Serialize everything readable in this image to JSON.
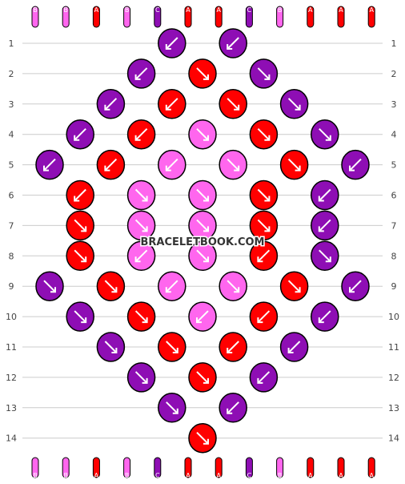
{
  "watermark": "BRACELETBOOK.COM",
  "colors": {
    "A": "#ff0000",
    "B": "#ff66ee",
    "C": "#8e0eb4",
    "grid": "#cccccc",
    "rowNumber": "#444444",
    "arrow": "#ffffff"
  },
  "strings_top": [
    "B",
    "B",
    "A",
    "B",
    "C",
    "A",
    "A",
    "C",
    "B",
    "A",
    "A",
    "A"
  ],
  "strings_bottom": [
    "B",
    "B",
    "A",
    "B",
    "C",
    "A",
    "A",
    "C",
    "B",
    "A",
    "A",
    "A"
  ],
  "row_numbers": [
    "1",
    "2",
    "3",
    "4",
    "5",
    "6",
    "7",
    "8",
    "9",
    "10",
    "11",
    "12",
    "13",
    "14"
  ],
  "knot_rows": [
    {
      "row": "1",
      "knots": [
        {
          "color": "C",
          "dir": "ldown"
        },
        {
          "color": "C",
          "dir": "ldown"
        }
      ]
    },
    {
      "row": "2",
      "knots": [
        {
          "color": "C",
          "dir": "ldown"
        },
        {
          "color": "A",
          "dir": "rdown"
        },
        {
          "color": "C",
          "dir": "rdown"
        }
      ]
    },
    {
      "row": "3",
      "knots": [
        {
          "color": "C",
          "dir": "ldown"
        },
        {
          "color": "A",
          "dir": "ldown"
        },
        {
          "color": "A",
          "dir": "rdown"
        },
        {
          "color": "C",
          "dir": "rdown"
        }
      ]
    },
    {
      "row": "4",
      "knots": [
        {
          "color": "C",
          "dir": "ldown"
        },
        {
          "color": "A",
          "dir": "ldown"
        },
        {
          "color": "B",
          "dir": "rdown"
        },
        {
          "color": "A",
          "dir": "rdown"
        },
        {
          "color": "C",
          "dir": "rdown"
        }
      ]
    },
    {
      "row": "5",
      "knots": [
        {
          "color": "C",
          "dir": "ldown"
        },
        {
          "color": "A",
          "dir": "ldown"
        },
        {
          "color": "B",
          "dir": "ldown"
        },
        {
          "color": "B",
          "dir": "rdown"
        },
        {
          "color": "A",
          "dir": "rdown"
        },
        {
          "color": "C",
          "dir": "ldown"
        }
      ]
    },
    {
      "row": "6",
      "knots": [
        {
          "color": "A",
          "dir": "ldown"
        },
        {
          "color": "B",
          "dir": "rdown"
        },
        {
          "color": "B",
          "dir": "rdown"
        },
        {
          "color": "A",
          "dir": "rdown"
        },
        {
          "color": "C",
          "dir": "ldown"
        }
      ]
    },
    {
      "row": "7",
      "knots": [
        {
          "color": "A",
          "dir": "rdown"
        },
        {
          "color": "B",
          "dir": "rdown"
        },
        {
          "color": "B",
          "dir": "rdown"
        },
        {
          "color": "A",
          "dir": "rdown"
        },
        {
          "color": "C",
          "dir": "ldown"
        }
      ]
    },
    {
      "row": "8",
      "knots": [
        {
          "color": "A",
          "dir": "rdown"
        },
        {
          "color": "B",
          "dir": "ldown"
        },
        {
          "color": "B",
          "dir": "rdown"
        },
        {
          "color": "A",
          "dir": "ldown"
        },
        {
          "color": "C",
          "dir": "rdown"
        }
      ]
    },
    {
      "row": "9",
      "knots": [
        {
          "color": "C",
          "dir": "rdown"
        },
        {
          "color": "A",
          "dir": "rdown"
        },
        {
          "color": "B",
          "dir": "ldown"
        },
        {
          "color": "B",
          "dir": "rdown"
        },
        {
          "color": "A",
          "dir": "rdown"
        },
        {
          "color": "C",
          "dir": "ldown"
        }
      ]
    },
    {
      "row": "10",
      "knots": [
        {
          "color": "C",
          "dir": "rdown"
        },
        {
          "color": "A",
          "dir": "rdown"
        },
        {
          "color": "B",
          "dir": "ldown"
        },
        {
          "color": "A",
          "dir": "ldown"
        },
        {
          "color": "C",
          "dir": "ldown"
        }
      ]
    },
    {
      "row": "11",
      "knots": [
        {
          "color": "C",
          "dir": "rdown"
        },
        {
          "color": "A",
          "dir": "rdown"
        },
        {
          "color": "A",
          "dir": "ldown"
        },
        {
          "color": "C",
          "dir": "ldown"
        }
      ]
    },
    {
      "row": "12",
      "knots": [
        {
          "color": "C",
          "dir": "rdown"
        },
        {
          "color": "A",
          "dir": "rdown"
        },
        {
          "color": "C",
          "dir": "ldown"
        }
      ]
    },
    {
      "row": "13",
      "knots": [
        {
          "color": "C",
          "dir": "rdown"
        },
        {
          "color": "C",
          "dir": "ldown"
        }
      ]
    },
    {
      "row": "14",
      "knots": [
        {
          "color": "A",
          "dir": "rdown"
        }
      ]
    }
  ]
}
